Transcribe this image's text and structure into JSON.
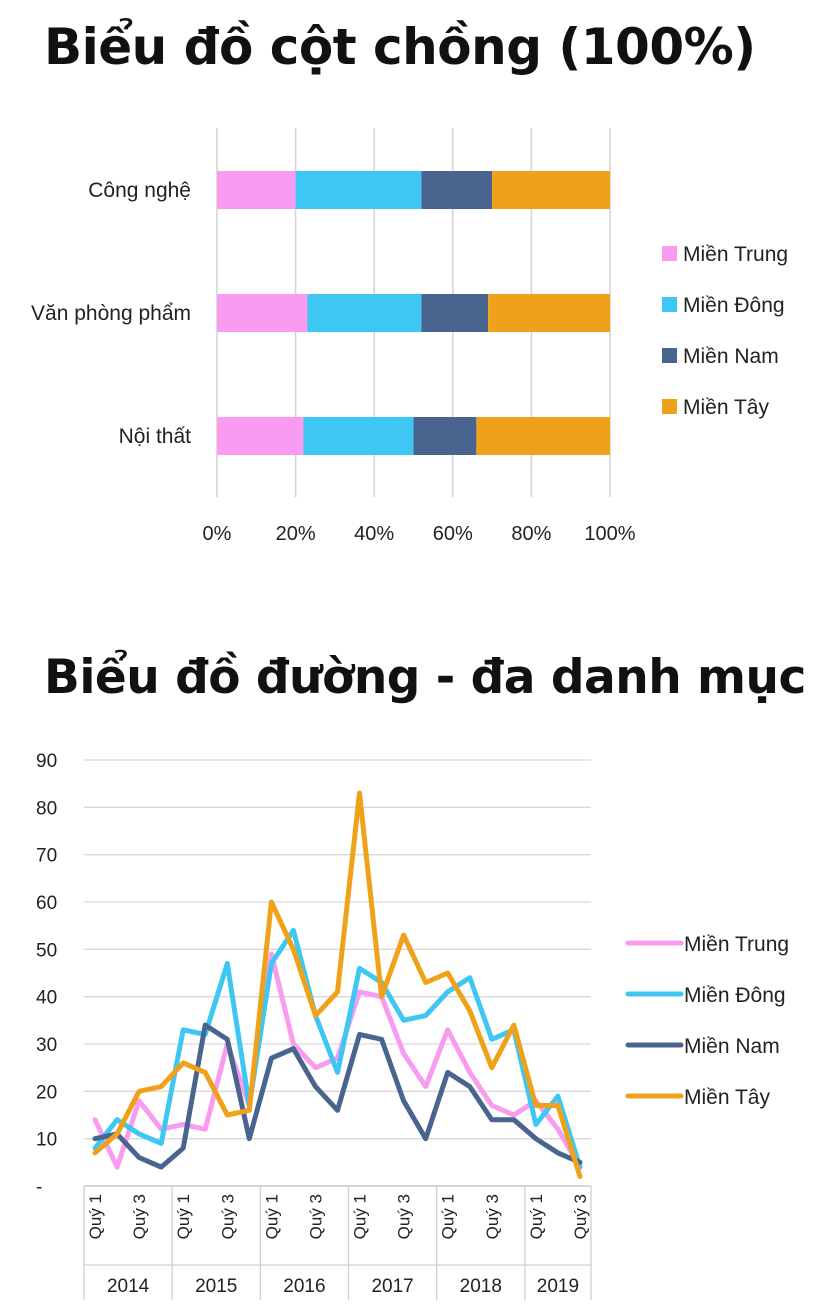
{
  "chart_data": [
    {
      "type": "bar",
      "orientation": "horizontal",
      "stacked": "percent",
      "title": "Biểu đồ cột chồng (100%)",
      "categories": [
        "Công nghệ",
        "Văn phòng phẩm",
        "Nội thất"
      ],
      "series": [
        {
          "name": "Miền Trung",
          "color": "#f99cf1",
          "values": [
            20,
            23,
            22
          ]
        },
        {
          "name": "Miền Đông",
          "color": "#3ec7f2",
          "values": [
            32,
            29,
            28
          ]
        },
        {
          "name": "Miền Nam",
          "color": "#4a6490",
          "values": [
            18,
            17,
            16
          ]
        },
        {
          "name": "Miền Tây",
          "color": "#efa11a",
          "values": [
            30,
            31,
            34
          ]
        }
      ],
      "xticks": [
        "0%",
        "20%",
        "40%",
        "60%",
        "80%",
        "100%"
      ],
      "xlim": [
        0,
        100
      ],
      "grid": true,
      "legend": "right"
    },
    {
      "type": "line",
      "title": "Biểu đồ đường - đa danh mục",
      "quarter_labels": [
        "Quý 1",
        "Quý 3"
      ],
      "years": [
        "2014",
        "2015",
        "2016",
        "2017",
        "2018",
        "2019"
      ],
      "series": [
        {
          "name": "Miền Trung",
          "color": "#f99cf1",
          "values": [
            14,
            4,
            18,
            12,
            13,
            12,
            30,
            17,
            49,
            30,
            25,
            27,
            41,
            40,
            28,
            21,
            33,
            24,
            17,
            15,
            18,
            12,
            4
          ]
        },
        {
          "name": "Miền Đông",
          "color": "#3ec7f2",
          "values": [
            8,
            14,
            11,
            9,
            33,
            32,
            47,
            17,
            47,
            54,
            36,
            24,
            46,
            43,
            35,
            36,
            41,
            44,
            31,
            33,
            13,
            19,
            4
          ]
        },
        {
          "name": "Miền Nam",
          "color": "#4a6490",
          "values": [
            10,
            11,
            6,
            4,
            8,
            34,
            31,
            10,
            27,
            29,
            21,
            16,
            32,
            31,
            18,
            10,
            24,
            21,
            14,
            14,
            10,
            7,
            5
          ]
        },
        {
          "name": "Miền Tây",
          "color": "#efa11a",
          "values": [
            7,
            11,
            20,
            21,
            26,
            24,
            15,
            16,
            60,
            50,
            36,
            41,
            83,
            40,
            53,
            43,
            45,
            37,
            25,
            34,
            17,
            17,
            2
          ]
        }
      ],
      "yticks": [
        "-",
        "10",
        "20",
        "30",
        "40",
        "50",
        "60",
        "70",
        "80",
        "90"
      ],
      "ylim": [
        0,
        90
      ],
      "grid": true,
      "legend": "right"
    }
  ]
}
